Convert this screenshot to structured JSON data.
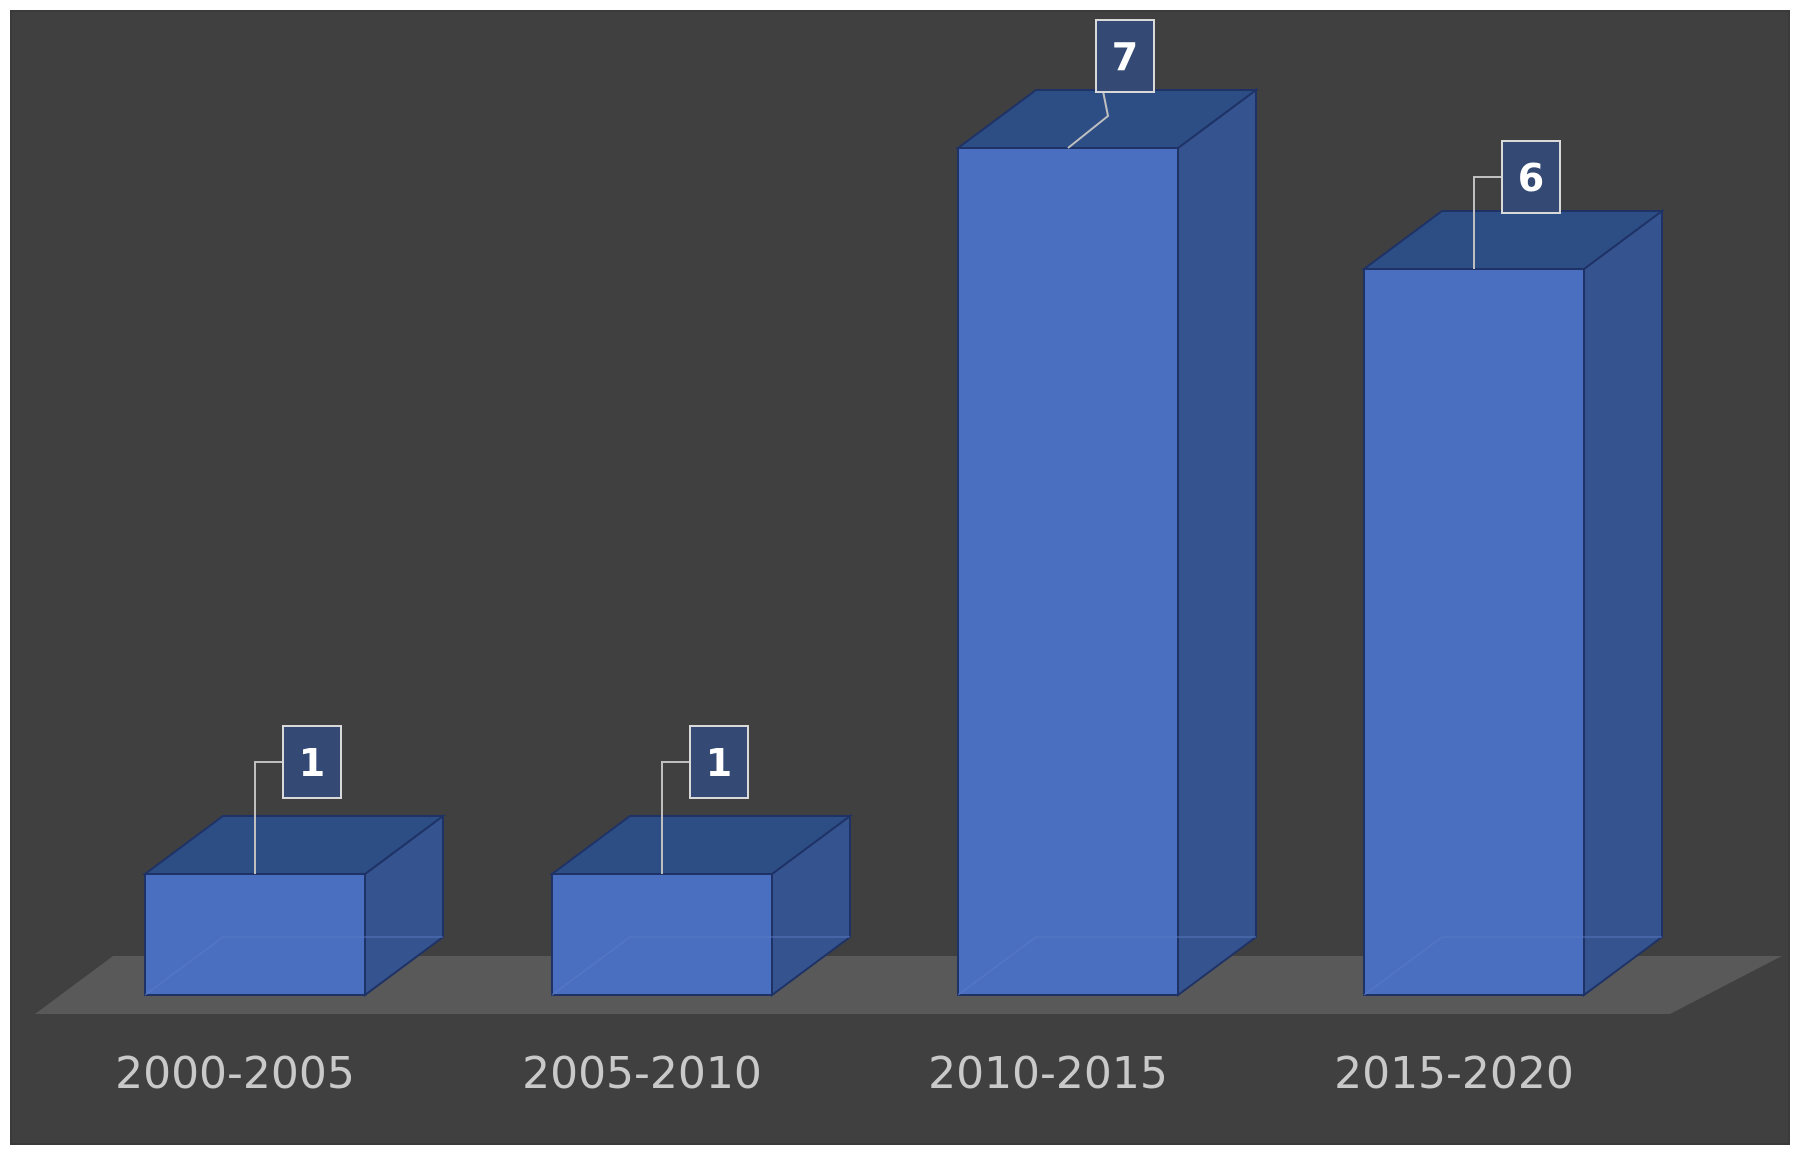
{
  "chart_data": {
    "type": "bar",
    "style": "3d-column",
    "categories": [
      "2000-2005",
      "2005-2010",
      "2010-2015",
      "2015-2020"
    ],
    "values": [
      1,
      1,
      7,
      6
    ],
    "data_labels": [
      "1",
      "1",
      "7",
      "6"
    ],
    "title": "",
    "xlabel": "",
    "ylabel": "",
    "ylim": [
      0,
      7
    ],
    "grid": false,
    "legend": "none",
    "colors": {
      "bar_front": "#4a6fc0",
      "bar_side": "#35548f",
      "bar_top": "#2d4d85",
      "bar_edge": "#1e3266",
      "floor": "#595959",
      "background": "#404040",
      "label_box": "#344a75"
    }
  }
}
